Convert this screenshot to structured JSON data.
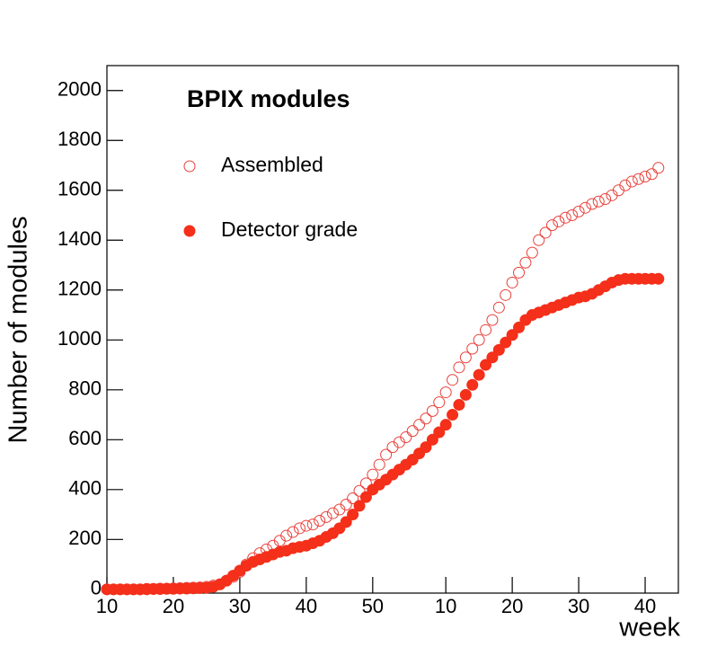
{
  "chart_data": {
    "type": "scatter",
    "title": "BPIX modules",
    "xlabel": "week",
    "ylabel": "Number of modules",
    "x": [
      10,
      11,
      12,
      13,
      14,
      15,
      16,
      17,
      18,
      19,
      20,
      21,
      22,
      23,
      24,
      25,
      26,
      27,
      28,
      29,
      30,
      31,
      32,
      33,
      34,
      35,
      36,
      37,
      38,
      39,
      40,
      41,
      42,
      43,
      44,
      45,
      46,
      47,
      48,
      49,
      50,
      51,
      52,
      53,
      54,
      55,
      56,
      57,
      58,
      59,
      60,
      61,
      62,
      63,
      64,
      65,
      66,
      67,
      68,
      69,
      70,
      71,
      72,
      73,
      74,
      75,
      76,
      77,
      78,
      79,
      80,
      81,
      82,
      83,
      84,
      85,
      86,
      87,
      88,
      89,
      90,
      91,
      92,
      93
    ],
    "series": [
      {
        "name": "Assembled",
        "color": "#e8403a",
        "marker": "open",
        "values": [
          0,
          0,
          0,
          0,
          0,
          0,
          2,
          2,
          3,
          3,
          4,
          5,
          6,
          7,
          8,
          10,
          15,
          20,
          35,
          50,
          70,
          100,
          125,
          145,
          160,
          175,
          195,
          215,
          230,
          245,
          255,
          260,
          275,
          290,
          305,
          320,
          340,
          365,
          395,
          425,
          460,
          500,
          540,
          570,
          590,
          610,
          635,
          660,
          685,
          715,
          750,
          790,
          840,
          890,
          930,
          965,
          1000,
          1040,
          1080,
          1130,
          1180,
          1230,
          1270,
          1310,
          1350,
          1400,
          1430,
          1460,
          1475,
          1490,
          1500,
          1515,
          1530,
          1545,
          1555,
          1565,
          1580,
          1600,
          1620,
          1635,
          1645,
          1655,
          1665,
          1690
        ]
      },
      {
        "name": "Detector grade",
        "color": "#f42f1a",
        "marker": "filled",
        "values": [
          0,
          0,
          0,
          0,
          0,
          0,
          0,
          1,
          1,
          2,
          2,
          3,
          3,
          4,
          5,
          6,
          10,
          20,
          35,
          55,
          75,
          95,
          110,
          120,
          130,
          140,
          150,
          155,
          165,
          170,
          175,
          185,
          195,
          210,
          225,
          245,
          270,
          300,
          335,
          370,
          400,
          420,
          440,
          460,
          480,
          500,
          520,
          545,
          570,
          600,
          630,
          660,
          700,
          740,
          780,
          820,
          860,
          900,
          930,
          960,
          990,
          1020,
          1050,
          1080,
          1100,
          1110,
          1120,
          1130,
          1140,
          1150,
          1160,
          1170,
          1175,
          1185,
          1200,
          1215,
          1230,
          1240,
          1245,
          1245,
          1245,
          1245,
          1245,
          1245
        ]
      }
    ],
    "xlim": [
      10,
      96
    ],
    "xticks": [
      10,
      20,
      30,
      40,
      50,
      {
        "value": 61,
        "label": "10"
      },
      {
        "value": 71,
        "label": "20"
      },
      {
        "value": 81,
        "label": "30"
      },
      {
        "value": 91,
        "label": "40"
      }
    ],
    "ylim": [
      -15,
      2100
    ],
    "yticks": [
      0,
      200,
      400,
      600,
      800,
      1000,
      1200,
      1400,
      1600,
      1800,
      2000
    ],
    "grid": false
  }
}
